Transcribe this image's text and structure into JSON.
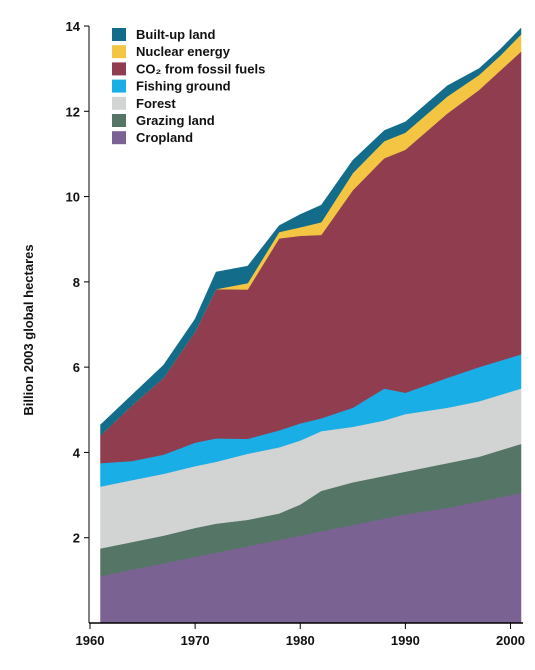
{
  "chart_data": {
    "type": "area",
    "stacked": true,
    "title": "",
    "xlabel": "",
    "ylabel": "Billion 2003 global hectares",
    "xlim": [
      1960,
      2001
    ],
    "ylim": [
      0,
      14
    ],
    "x_ticks": [
      1960,
      1970,
      1980,
      1990,
      2000
    ],
    "y_ticks": [
      2,
      4,
      6,
      8,
      10,
      12,
      14
    ],
    "legend_position": "top-left",
    "x": [
      1961,
      1964,
      1967,
      1970,
      1972,
      1975,
      1978,
      1980,
      1982,
      1985,
      1988,
      1990,
      1994,
      1997,
      1999,
      2001
    ],
    "series": [
      {
        "name": "Cropland",
        "color": "#7a6393",
        "values": [
          1.1,
          1.25,
          1.4,
          1.55,
          1.65,
          1.8,
          1.95,
          2.05,
          2.15,
          2.3,
          2.45,
          2.55,
          2.7,
          2.85,
          2.95,
          3.05
        ]
      },
      {
        "name": "Grazing land",
        "color": "#557566",
        "values": [
          0.65,
          0.65,
          0.65,
          0.68,
          0.68,
          0.62,
          0.62,
          0.73,
          0.95,
          1.0,
          1.0,
          1.0,
          1.05,
          1.05,
          1.1,
          1.15
        ]
      },
      {
        "name": "Forest",
        "color": "#d2d3d3",
        "values": [
          1.45,
          1.45,
          1.45,
          1.45,
          1.45,
          1.55,
          1.55,
          1.5,
          1.4,
          1.3,
          1.3,
          1.35,
          1.3,
          1.3,
          1.3,
          1.3
        ]
      },
      {
        "name": "Fishing ground",
        "color": "#1aaee6",
        "values": [
          0.55,
          0.45,
          0.45,
          0.55,
          0.55,
          0.35,
          0.4,
          0.4,
          0.3,
          0.45,
          0.75,
          0.5,
          0.7,
          0.8,
          0.8,
          0.8
        ]
      },
      {
        "name": "CO₂ from fossil fuels",
        "color": "#8f3d4f",
        "values": [
          0.65,
          1.3,
          1.8,
          2.6,
          3.5,
          3.5,
          4.5,
          4.4,
          4.3,
          5.1,
          5.4,
          5.7,
          6.2,
          6.5,
          6.8,
          7.1
        ]
      },
      {
        "name": "Nuclear energy",
        "color": "#f4c542",
        "values": [
          0.0,
          0.0,
          0.0,
          0.0,
          0.0,
          0.15,
          0.15,
          0.2,
          0.3,
          0.4,
          0.4,
          0.4,
          0.4,
          0.35,
          0.35,
          0.4
        ]
      },
      {
        "name": "Built-up land",
        "color": "#126c8a",
        "values": [
          0.25,
          0.25,
          0.3,
          0.3,
          0.4,
          0.4,
          0.15,
          0.3,
          0.4,
          0.3,
          0.25,
          0.25,
          0.25,
          0.15,
          0.15,
          0.15
        ]
      }
    ],
    "legend_order": [
      "Built-up land",
      "Nuclear energy",
      "CO₂ from fossil fuels",
      "Fishing ground",
      "Forest",
      "Grazing land",
      "Cropland"
    ]
  }
}
